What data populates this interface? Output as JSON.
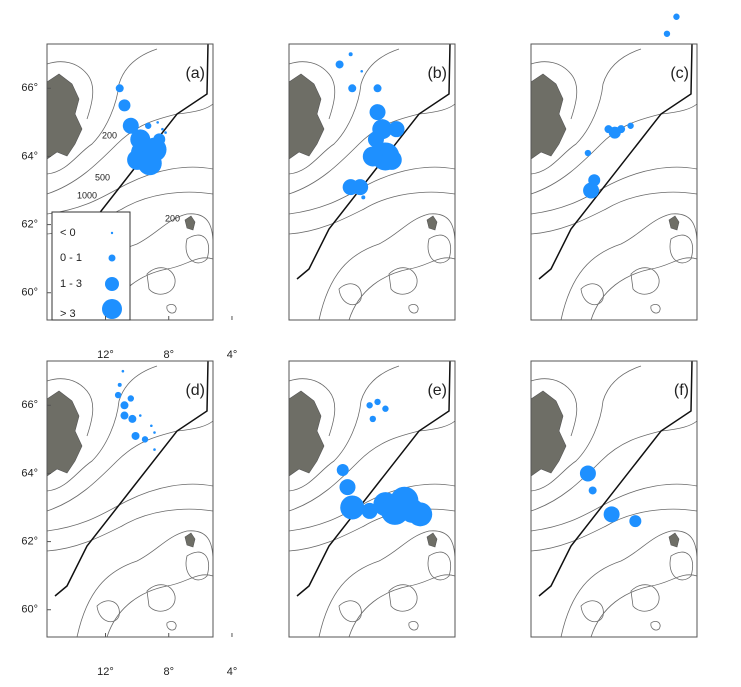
{
  "map": {
    "lonlim": [
      15.7,
      5.2
    ],
    "latlim": [
      59.2,
      67.3
    ],
    "color": "#1e90ff",
    "lon_ticks": [
      {
        "value": 12,
        "label": "12°"
      },
      {
        "value": 8,
        "label": "8°"
      },
      {
        "value": 4,
        "label": "4°"
      }
    ],
    "lat_ticks": [
      {
        "value": 66,
        "label": "66°"
      },
      {
        "value": 64,
        "label": "64°"
      },
      {
        "value": 62,
        "label": "62°"
      },
      {
        "value": 60,
        "label": "60°"
      }
    ],
    "contour_labels": [
      "200",
      "500",
      "1000",
      "200"
    ],
    "legend": [
      "< 0",
      "0 - 1",
      "1 - 3",
      "> 3"
    ],
    "panels": [
      {
        "label": "(a)",
        "points": [
          {
            "lon": 11.1,
            "lat": 66.0,
            "value": 0.5
          },
          {
            "lon": 10.8,
            "lat": 65.5,
            "value": 1
          },
          {
            "lon": 10.4,
            "lat": 64.9,
            "value": 1.5
          },
          {
            "lon": 9.8,
            "lat": 64.5,
            "value": 2
          },
          {
            "lon": 9.5,
            "lat": 64.1,
            "value": 3
          },
          {
            "lon": 8.9,
            "lat": 64.2,
            "value": 2.5
          },
          {
            "lon": 10.0,
            "lat": 63.9,
            "value": 2
          },
          {
            "lon": 9.2,
            "lat": 63.8,
            "value": 2.5
          },
          {
            "lon": 8.6,
            "lat": 64.5,
            "value": 1
          },
          {
            "lon": 9.3,
            "lat": 64.9,
            "value": 0.3
          },
          {
            "lon": 8.4,
            "lat": 64.8,
            "value": -0.5
          },
          {
            "lon": 8.7,
            "lat": 65.0,
            "value": -0.5
          },
          {
            "lon": 8.2,
            "lat": 64.7,
            "value": -0.5
          }
        ]
      },
      {
        "label": "(b)",
        "points": [
          {
            "lon": 11.8,
            "lat": 67.0,
            "value": 0
          },
          {
            "lon": 12.5,
            "lat": 66.7,
            "value": 0.5
          },
          {
            "lon": 11.7,
            "lat": 66.0,
            "value": 0.5
          },
          {
            "lon": 11.1,
            "lat": 66.5,
            "value": -0.5
          },
          {
            "lon": 10.1,
            "lat": 66.0,
            "value": 0.5
          },
          {
            "lon": 10.1,
            "lat": 65.3,
            "value": 1.5
          },
          {
            "lon": 9.8,
            "lat": 64.8,
            "value": 2
          },
          {
            "lon": 8.9,
            "lat": 64.8,
            "value": 1.5
          },
          {
            "lon": 10.2,
            "lat": 64.5,
            "value": 1.5
          },
          {
            "lon": 9.6,
            "lat": 64.0,
            "value": 3
          },
          {
            "lon": 10.4,
            "lat": 64.0,
            "value": 2
          },
          {
            "lon": 9.2,
            "lat": 63.9,
            "value": 2
          },
          {
            "lon": 11.8,
            "lat": 63.1,
            "value": 1.5
          },
          {
            "lon": 11.2,
            "lat": 63.1,
            "value": 1.5
          },
          {
            "lon": 11.0,
            "lat": 62.8,
            "value": 0
          }
        ]
      },
      {
        "label": "(c)",
        "points": [
          {
            "lon": 6.5,
            "lat": 68.1,
            "value": 0.3
          },
          {
            "lon": 7.1,
            "lat": 67.6,
            "value": 0.3
          },
          {
            "lon": 10.8,
            "lat": 64.8,
            "value": 0.5
          },
          {
            "lon": 10.4,
            "lat": 64.7,
            "value": 1
          },
          {
            "lon": 10.0,
            "lat": 64.8,
            "value": 0.5
          },
          {
            "lon": 9.4,
            "lat": 64.9,
            "value": 0.3
          },
          {
            "lon": 12.1,
            "lat": 64.1,
            "value": 0.3
          },
          {
            "lon": 11.7,
            "lat": 63.3,
            "value": 1
          },
          {
            "lon": 11.9,
            "lat": 63.0,
            "value": 1.5
          }
        ]
      },
      {
        "label": "(d)",
        "points": [
          {
            "lon": 10.9,
            "lat": 67.0,
            "value": -0.5
          },
          {
            "lon": 11.1,
            "lat": 66.6,
            "value": 0
          },
          {
            "lon": 11.2,
            "lat": 66.3,
            "value": 0.3
          },
          {
            "lon": 10.8,
            "lat": 66.0,
            "value": 0.5
          },
          {
            "lon": 10.4,
            "lat": 66.2,
            "value": 0.3
          },
          {
            "lon": 10.8,
            "lat": 65.7,
            "value": 0.5
          },
          {
            "lon": 10.3,
            "lat": 65.6,
            "value": 0.5
          },
          {
            "lon": 9.8,
            "lat": 65.7,
            "value": -0.5
          },
          {
            "lon": 9.5,
            "lat": 65.0,
            "value": 0.3
          },
          {
            "lon": 10.1,
            "lat": 65.1,
            "value": 0.5
          },
          {
            "lon": 8.9,
            "lat": 65.2,
            "value": -0.5
          },
          {
            "lon": 9.1,
            "lat": 65.4,
            "value": -0.5
          },
          {
            "lon": 8.9,
            "lat": 64.7,
            "value": -0.5
          }
        ]
      },
      {
        "label": "(e)",
        "points": [
          {
            "lon": 10.6,
            "lat": 66.0,
            "value": 0.3
          },
          {
            "lon": 10.1,
            "lat": 66.1,
            "value": 0.3
          },
          {
            "lon": 9.6,
            "lat": 65.9,
            "value": 0.3
          },
          {
            "lon": 10.4,
            "lat": 65.6,
            "value": 0.3
          },
          {
            "lon": 12.3,
            "lat": 64.1,
            "value": 1
          },
          {
            "lon": 12.0,
            "lat": 63.6,
            "value": 1.5
          },
          {
            "lon": 11.7,
            "lat": 63.0,
            "value": 2.5
          },
          {
            "lon": 9.6,
            "lat": 63.1,
            "value": 2.5
          },
          {
            "lon": 9.0,
            "lat": 62.9,
            "value": 3
          },
          {
            "lon": 8.4,
            "lat": 63.2,
            "value": 3
          },
          {
            "lon": 7.9,
            "lat": 62.9,
            "value": 2.5
          },
          {
            "lon": 7.4,
            "lat": 62.8,
            "value": 2.5
          },
          {
            "lon": 10.6,
            "lat": 62.9,
            "value": 1.5
          }
        ]
      },
      {
        "label": "(f)",
        "points": [
          {
            "lon": 12.1,
            "lat": 64.0,
            "value": 1.5
          },
          {
            "lon": 11.8,
            "lat": 63.5,
            "value": 0.5
          },
          {
            "lon": 10.6,
            "lat": 62.8,
            "value": 1.5
          },
          {
            "lon": 9.1,
            "lat": 62.6,
            "value": 1
          }
        ]
      }
    ]
  }
}
